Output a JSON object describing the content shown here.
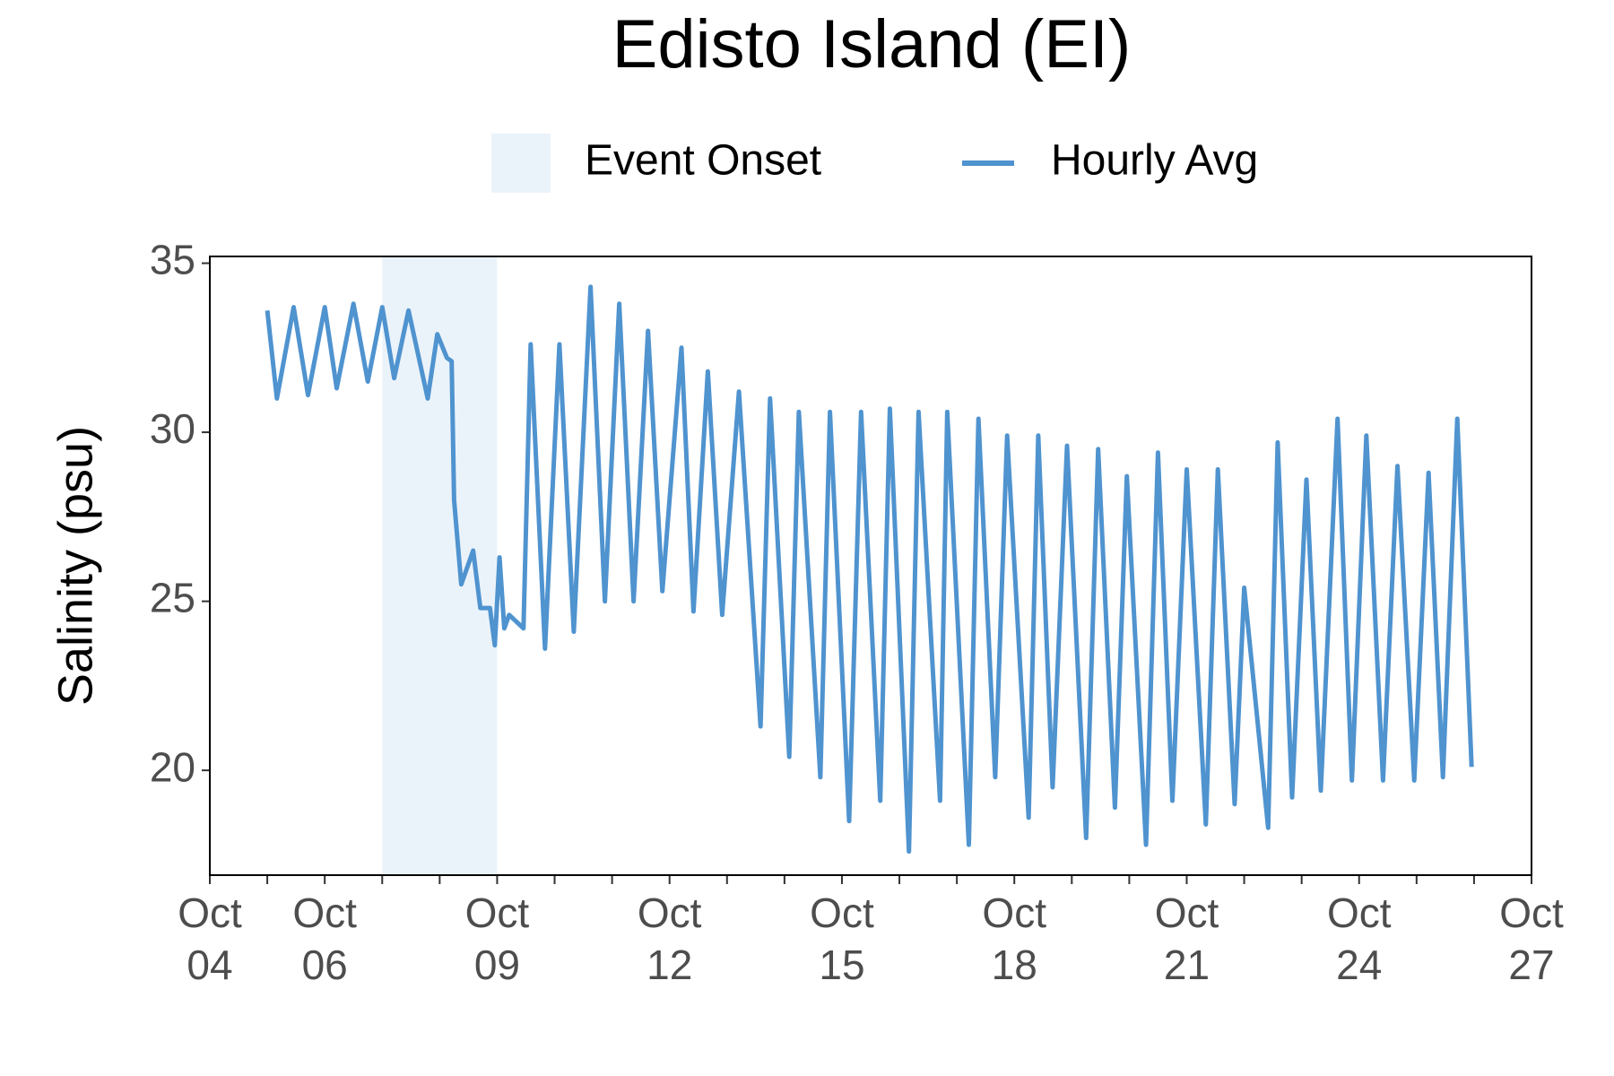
{
  "chart_data": {
    "type": "line",
    "title": "Edisto Island (EI)",
    "y_label": "Salinity (psu)",
    "legend_position": "top",
    "shaded_regions": [
      {
        "name": "Event Onset",
        "color": "#ebf3fa",
        "x": [
          "Oct 07 00:00",
          "Oct 09 00:00"
        ]
      }
    ],
    "x": [
      "Oct 05 00:00",
      "Oct 05 04:00",
      "Oct 05 11:00",
      "Oct 05 17:00",
      "Oct 06 00:00",
      "Oct 06 05:00",
      "Oct 06 12:00",
      "Oct 06 18:00",
      "Oct 07 00:00",
      "Oct 07 05:00",
      "Oct 07 11:00",
      "Oct 07 19:00",
      "Oct 07 23:00",
      "Oct 08 03:00",
      "Oct 08 05:00",
      "Oct 08 06:00",
      "Oct 08 09:00",
      "Oct 08 14:00",
      "Oct 08 17:00",
      "Oct 08 21:00",
      "Oct 08 23:00",
      "Oct 09 01:00",
      "Oct 09 03:00",
      "Oct 09 05:00",
      "Oct 09 11:00",
      "Oct 09 14:00",
      "Oct 09 20:00",
      "Oct 10 02:00",
      "Oct 10 08:00",
      "Oct 10 15:00",
      "Oct 10 21:00",
      "Oct 11 03:00",
      "Oct 11 09:00",
      "Oct 11 15:00",
      "Oct 11 21:00",
      "Oct 12 05:00",
      "Oct 12 10:00",
      "Oct 12 16:00",
      "Oct 12 22:00",
      "Oct 13 05:00",
      "Oct 13 14:00",
      "Oct 13 18:00",
      "Oct 14 02:00",
      "Oct 14 06:00",
      "Oct 14 15:00",
      "Oct 14 19:00",
      "Oct 15 03:00",
      "Oct 15 08:00",
      "Oct 15 16:00",
      "Oct 15 20:00",
      "Oct 16 04:00",
      "Oct 16 08:00",
      "Oct 16 17:00",
      "Oct 16 20:00",
      "Oct 17 05:00",
      "Oct 17 09:00",
      "Oct 17 16:00",
      "Oct 17 21:00",
      "Oct 18 06:00",
      "Oct 18 10:00",
      "Oct 18 16:00",
      "Oct 18 22:00",
      "Oct 19 06:00",
      "Oct 19 11:00",
      "Oct 19 18:00",
      "Oct 19 23:00",
      "Oct 20 07:00",
      "Oct 20 12:00",
      "Oct 20 18:00",
      "Oct 21 00:00",
      "Oct 21 08:00",
      "Oct 21 13:00",
      "Oct 21 20:00",
      "Oct 22 00:00",
      "Oct 22 10:00",
      "Oct 22 14:00",
      "Oct 22 20:00",
      "Oct 23 02:00",
      "Oct 23 08:00",
      "Oct 23 15:00",
      "Oct 23 21:00",
      "Oct 24 03:00",
      "Oct 24 10:00",
      "Oct 24 16:00",
      "Oct 24 23:00",
      "Oct 25 05:00",
      "Oct 25 11:00",
      "Oct 25 17:00",
      "Oct 25 23:00"
    ],
    "series": [
      {
        "name": "Hourly Avg",
        "color": "#4f93cf",
        "values": [
          33.6,
          31.0,
          33.7,
          31.1,
          33.7,
          31.3,
          33.8,
          31.5,
          33.7,
          31.6,
          33.6,
          31.0,
          32.9,
          32.2,
          32.1,
          28.0,
          25.5,
          26.5,
          24.8,
          24.8,
          23.7,
          26.3,
          24.2,
          24.6,
          24.2,
          32.6,
          23.6,
          32.6,
          24.1,
          34.3,
          25.0,
          33.8,
          25.0,
          33.0,
          25.3,
          32.5,
          24.7,
          31.8,
          24.6,
          31.2,
          21.3,
          31.0,
          20.4,
          30.6,
          19.8,
          30.6,
          18.5,
          30.6,
          19.1,
          30.7,
          17.6,
          30.6,
          19.1,
          30.6,
          17.8,
          30.4,
          19.8,
          29.9,
          18.6,
          29.9,
          19.5,
          29.6,
          18.0,
          29.5,
          18.9,
          28.7,
          17.8,
          29.4,
          19.1,
          28.9,
          18.4,
          28.9,
          19.0,
          25.4,
          18.3,
          29.7,
          19.2,
          28.6,
          19.4,
          30.4,
          19.7,
          29.9,
          19.7,
          29.0,
          19.7,
          28.8,
          19.8,
          30.4,
          20.1
        ]
      }
    ],
    "xlim": [
      "Oct 04",
      "Oct 27"
    ],
    "xticks": [
      "Oct 04",
      "Oct 06",
      "Oct 09",
      "Oct 12",
      "Oct 15",
      "Oct 18",
      "Oct 21",
      "Oct 24",
      "Oct 27"
    ],
    "xminor_ticks": [
      "Oct 05",
      "Oct 07",
      "Oct 08",
      "Oct 10",
      "Oct 11",
      "Oct 13",
      "Oct 14",
      "Oct 16",
      "Oct 17",
      "Oct 19",
      "Oct 20",
      "Oct 22",
      "Oct 23",
      "Oct 25",
      "Oct 26"
    ],
    "ylim": [
      16.9,
      35.2
    ],
    "yticks": [
      20,
      25,
      30,
      35
    ],
    "grid": false
  }
}
